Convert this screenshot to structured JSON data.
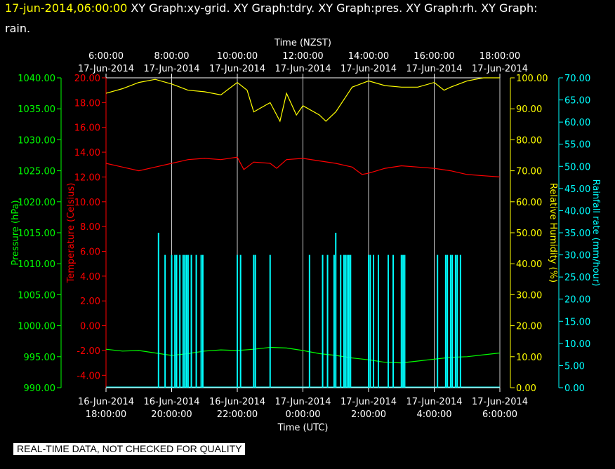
{
  "title": {
    "datetime": "17-jun-2014,06:00:00",
    "text_part1": "XY Graph:xy-grid.  XY Graph:tdry.  XY Graph:pres.  XY Graph:rh.  XY Graph:",
    "text_part2": "rain."
  },
  "footer": "REAL-TIME DATA, NOT CHECKED FOR QUALITY",
  "colors": {
    "background": "#000000",
    "grid": "#ffffff",
    "pressure": "#00ff00",
    "temperature": "#ff0000",
    "humidity": "#ffff00",
    "rain": "#00ffff"
  },
  "chart_data": {
    "type": "line",
    "top_axis": {
      "label": "Time (NZST)",
      "ticks": [
        {
          "time": "6:00:00",
          "date": "17-Jun-2014"
        },
        {
          "time": "8:00:00",
          "date": "17-Jun-2014"
        },
        {
          "time": "10:00:00",
          "date": "17-Jun-2014"
        },
        {
          "time": "12:00:00",
          "date": "17-Jun-2014"
        },
        {
          "time": "14:00:00",
          "date": "17-Jun-2014"
        },
        {
          "time": "16:00:00",
          "date": "17-Jun-2014"
        },
        {
          "time": "18:00:00",
          "date": "17-Jun-2014"
        }
      ]
    },
    "bottom_axis": {
      "label": "Time (UTC)",
      "ticks": [
        {
          "date": "16-Jun-2014",
          "time": "18:00:00"
        },
        {
          "date": "16-Jun-2014",
          "time": "20:00:00"
        },
        {
          "date": "16-Jun-2014",
          "time": "22:00:00"
        },
        {
          "date": "17-Jun-2014",
          "time": "0:00:00"
        },
        {
          "date": "17-Jun-2014",
          "time": "2:00:00"
        },
        {
          "date": "17-Jun-2014",
          "time": "4:00:00"
        },
        {
          "date": "17-Jun-2014",
          "time": "6:00:00"
        }
      ],
      "range_hours_utc": [
        18,
        30
      ]
    },
    "axes": {
      "pressure": {
        "label": "Pressure (hPa)",
        "min": 990,
        "max": 1040,
        "ticks": [
          "990.00",
          "995.00",
          "1000.00",
          "1005.00",
          "1010.00",
          "1015.00",
          "1020.00",
          "1025.00",
          "1030.00",
          "1035.00",
          "1040.00"
        ]
      },
      "temperature": {
        "label": "Temperature (Celsius)",
        "min": -5,
        "max": 20,
        "ticks": [
          "-4.00",
          "-2.00",
          "0.00",
          "2.00",
          "4.00",
          "6.00",
          "8.00",
          "10.00",
          "12.00",
          "14.00",
          "16.00",
          "18.00",
          "20.00"
        ]
      },
      "humidity": {
        "label": "Relative Humidity (%)",
        "min": 0,
        "max": 100,
        "ticks": [
          "0.00",
          "10.00",
          "20.00",
          "30.00",
          "40.00",
          "50.00",
          "60.00",
          "70.00",
          "80.00",
          "90.00",
          "100.00"
        ]
      },
      "rain": {
        "label": "Rainfall rate (mm/hour)",
        "min": 0,
        "max": 70,
        "ticks": [
          "0.00",
          "5.00",
          "10.00",
          "15.00",
          "20.00",
          "25.00",
          "30.00",
          "35.00",
          "40.00",
          "45.00",
          "50.00",
          "55.00",
          "60.00",
          "65.00",
          "70.00"
        ]
      }
    },
    "series": [
      {
        "key": "pressure",
        "x": [
          18.0,
          18.5,
          19.0,
          19.5,
          20.0,
          20.5,
          21.0,
          21.5,
          22.0,
          22.5,
          23.0,
          23.5,
          24.0,
          24.5,
          25.0,
          25.5,
          26.0,
          26.5,
          27.0,
          27.5,
          28.0,
          28.5,
          29.0,
          29.5,
          30.0
        ],
        "y": [
          996.2,
          995.9,
          996.0,
          995.6,
          995.2,
          995.5,
          995.9,
          996.1,
          996.0,
          996.2,
          996.5,
          996.4,
          996.0,
          995.5,
          995.2,
          994.8,
          994.5,
          994.1,
          994.0,
          994.3,
          994.6,
          994.9,
          995.0,
          995.3,
          995.6
        ]
      },
      {
        "key": "temperature",
        "x": [
          18.0,
          18.5,
          19.0,
          19.5,
          20.0,
          20.5,
          21.0,
          21.5,
          22.0,
          22.2,
          22.5,
          23.0,
          23.2,
          23.5,
          24.0,
          24.5,
          25.0,
          25.5,
          25.8,
          26.0,
          26.5,
          27.0,
          27.5,
          28.0,
          28.5,
          29.0,
          29.5,
          30.0
        ],
        "y": [
          13.1,
          12.8,
          12.5,
          12.8,
          13.1,
          13.4,
          13.5,
          13.4,
          13.6,
          12.6,
          13.2,
          13.1,
          12.7,
          13.4,
          13.5,
          13.3,
          13.1,
          12.8,
          12.2,
          12.3,
          12.7,
          12.9,
          12.8,
          12.7,
          12.5,
          12.2,
          12.1,
          12.0
        ]
      },
      {
        "key": "humidity",
        "x": [
          18.0,
          18.5,
          19.0,
          19.5,
          20.0,
          20.5,
          21.0,
          21.5,
          22.0,
          22.3,
          22.5,
          23.0,
          23.3,
          23.5,
          23.8,
          24.0,
          24.5,
          24.7,
          25.0,
          25.5,
          26.0,
          26.5,
          27.0,
          27.5,
          28.0,
          28.3,
          28.5,
          29.0,
          29.5,
          30.0
        ],
        "y": [
          95.0,
          96.5,
          98.5,
          99.5,
          98.0,
          96.0,
          95.5,
          94.5,
          98.5,
          96.0,
          89.0,
          92.0,
          86.0,
          95.0,
          88.0,
          91.0,
          88.0,
          86.0,
          89.0,
          97.0,
          99.0,
          97.5,
          97.0,
          97.0,
          98.5,
          96.0,
          97.0,
          99.0,
          100.0,
          100.0
        ]
      },
      {
        "key": "rain",
        "type": "impulse",
        "x": [
          19.6,
          19.8,
          20.0,
          20.1,
          20.15,
          20.25,
          20.35,
          20.4,
          20.45,
          20.5,
          20.6,
          20.75,
          20.9,
          20.95,
          22.0,
          22.1,
          22.5,
          22.55,
          23.0,
          24.2,
          24.6,
          24.75,
          24.95,
          25.0,
          25.15,
          25.25,
          25.3,
          25.35,
          25.4,
          25.45,
          26.0,
          26.05,
          26.15,
          26.3,
          26.6,
          26.75,
          27.0,
          27.05,
          27.1,
          28.1,
          28.35,
          28.4,
          28.5,
          28.55,
          28.65,
          28.7,
          28.8
        ],
        "y": [
          35,
          30,
          30,
          30,
          30,
          30,
          30,
          30,
          30,
          30,
          30,
          30,
          30,
          30,
          30,
          30,
          30,
          30,
          30,
          30,
          30,
          30,
          30,
          35,
          30,
          30,
          30,
          30,
          30,
          30,
          30,
          30,
          30,
          30,
          30,
          30,
          30,
          30,
          30,
          30,
          30,
          30,
          30,
          30,
          30,
          30,
          30
        ]
      }
    ]
  }
}
